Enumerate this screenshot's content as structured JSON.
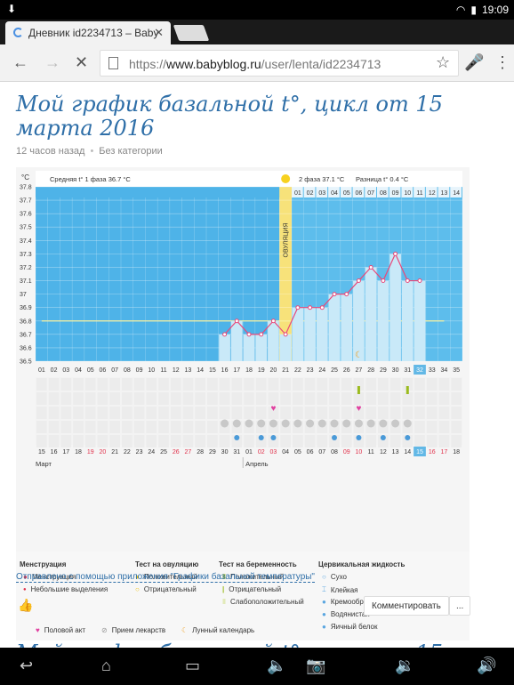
{
  "status": {
    "time": "19:09"
  },
  "tab": {
    "title": "Дневник id2234713 – Baby",
    "close": "✕"
  },
  "url": {
    "scheme": "https://",
    "host": "www.babyblog.ru",
    "path": "/user/lenta/id2234713"
  },
  "post": {
    "title": "Мой график базальной t°, цикл от 15 марта 2016",
    "time_ago": "12 часов назад",
    "category": "Без категории",
    "sent_via": "Отправлено с помощью приложения \"Графики базальной температуры\"",
    "comment_button": "Комментировать",
    "more_button": "...",
    "next_title": "Мой график базальной t°, цикл от 15 марта"
  },
  "chart_data": {
    "type": "line",
    "unit_label": "°C",
    "phase1_label": "Средняя t° 1 фаза 36.7 °C",
    "phase2_label": "2 фаза 37.1 °C",
    "diff_label": "Разница t° 0.4 °C",
    "ovulation_label": "ОВУЛЯЦИЯ",
    "ylim": [
      36.5,
      37.8
    ],
    "yticks": [
      "37.8",
      "37.7",
      "37.6",
      "37.5",
      "37.4",
      "37.3",
      "37.2",
      "37.1",
      "37",
      "36.9",
      "36.8",
      "36.7",
      "36.6",
      "36.5"
    ],
    "cycle_days": [
      "01",
      "02",
      "03",
      "04",
      "05",
      "06",
      "07",
      "08",
      "09",
      "10",
      "11",
      "12",
      "13",
      "14",
      "15",
      "16",
      "17",
      "18",
      "19",
      "20",
      "21",
      "22",
      "23",
      "24",
      "25",
      "26",
      "27",
      "28",
      "29",
      "30",
      "31",
      "32",
      "33",
      "34",
      "35"
    ],
    "phase2_days": [
      "01",
      "02",
      "03",
      "04",
      "05",
      "06",
      "07",
      "08",
      "09",
      "10",
      "11",
      "12",
      "13",
      "14"
    ],
    "dates": [
      "15",
      "16",
      "17",
      "18",
      "19",
      "20",
      "21",
      "22",
      "23",
      "24",
      "25",
      "26",
      "27",
      "28",
      "29",
      "30",
      "31",
      "01",
      "02",
      "03",
      "04",
      "05",
      "06",
      "07",
      "08",
      "09",
      "10",
      "11",
      "12",
      "13",
      "14",
      "15",
      "16",
      "17",
      "18"
    ],
    "weekend_dates": [
      4,
      5,
      11,
      12,
      18,
      19,
      25,
      26,
      32,
      33
    ],
    "months": [
      "Март",
      "Апрель"
    ],
    "values": [
      null,
      null,
      null,
      null,
      null,
      null,
      null,
      null,
      null,
      null,
      null,
      null,
      null,
      null,
      null,
      36.7,
      36.8,
      36.7,
      36.7,
      36.8,
      36.7,
      36.9,
      36.9,
      36.9,
      37.0,
      37.0,
      37.1,
      37.2,
      37.1,
      37.3,
      37.1,
      37.1,
      null,
      null,
      null
    ],
    "coverline": 36.8,
    "ovulation_day": 21,
    "current_day": 32,
    "moon_day": 27,
    "sex_days": [
      20,
      27
    ],
    "pregnancy_test_days": [
      27,
      31
    ],
    "medicine_days": [
      16,
      17,
      18,
      19,
      20,
      21,
      22,
      23,
      24,
      25,
      26,
      27,
      28,
      29,
      30,
      31
    ],
    "fluid_days": [
      17,
      19,
      20,
      25,
      27,
      29,
      31
    ]
  },
  "legend": {
    "menstruation": {
      "title": "Менструация",
      "items": [
        "Менструация",
        "Небольшие выделения"
      ]
    },
    "ovulation_test": {
      "title": "Тест на овуляцию",
      "items": [
        "Положительный",
        "Отрицательный"
      ]
    },
    "pregnancy_test": {
      "title": "Тест на беременность",
      "items": [
        "Положительный",
        "Отрицательный",
        "Слабоположительный"
      ]
    },
    "fluid": {
      "title": "Цервикальная жидкость",
      "items": [
        "Сухо",
        "Клейкая",
        "Кремообразная",
        "Водянистая",
        "Яичный белок"
      ]
    },
    "bottom": [
      "Половой акт",
      "Прием лекарств",
      "Лунный календарь"
    ]
  }
}
